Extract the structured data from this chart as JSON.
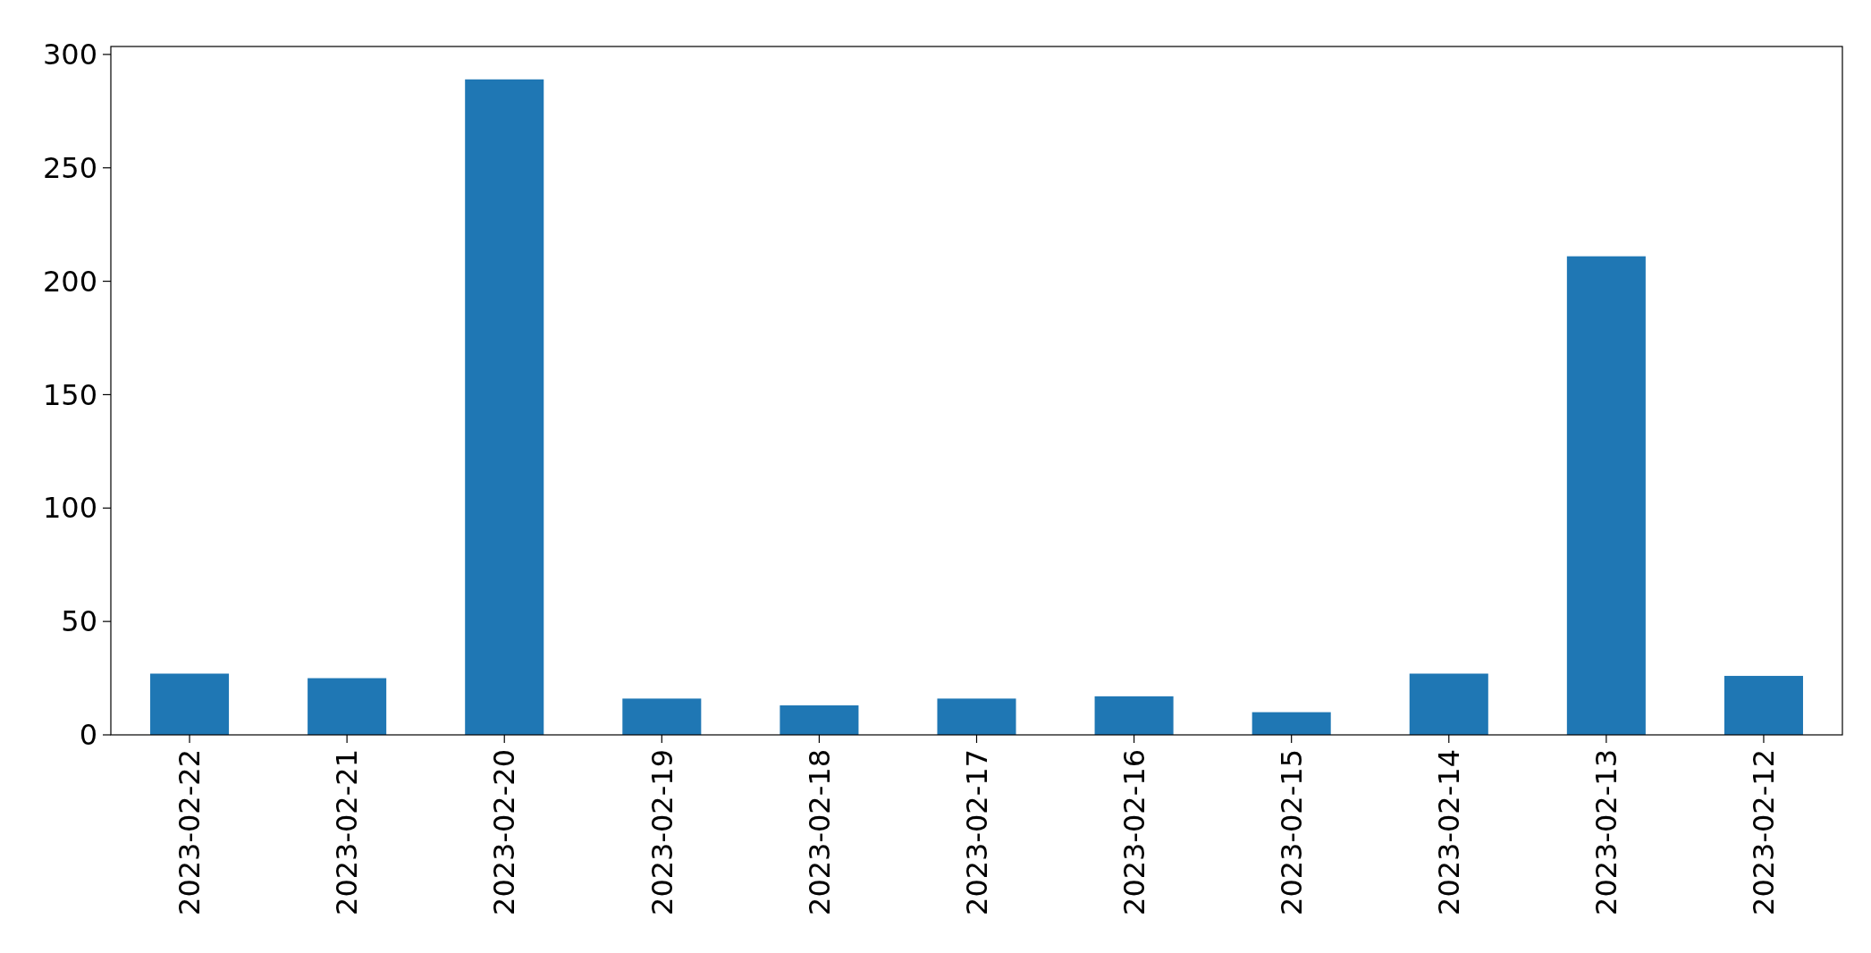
{
  "chart_data": {
    "type": "bar",
    "categories": [
      "2023-02-22",
      "2023-02-21",
      "2023-02-20",
      "2023-02-19",
      "2023-02-18",
      "2023-02-17",
      "2023-02-16",
      "2023-02-15",
      "2023-02-14",
      "2023-02-13",
      "2023-02-12"
    ],
    "values": [
      27,
      25,
      289,
      16,
      13,
      16,
      17,
      10,
      27,
      211,
      26
    ],
    "color": "#1f77b4",
    "ylim": [
      0,
      303.5
    ],
    "yticks": [
      0,
      50,
      100,
      150,
      200,
      250,
      300
    ],
    "grid": false
  }
}
